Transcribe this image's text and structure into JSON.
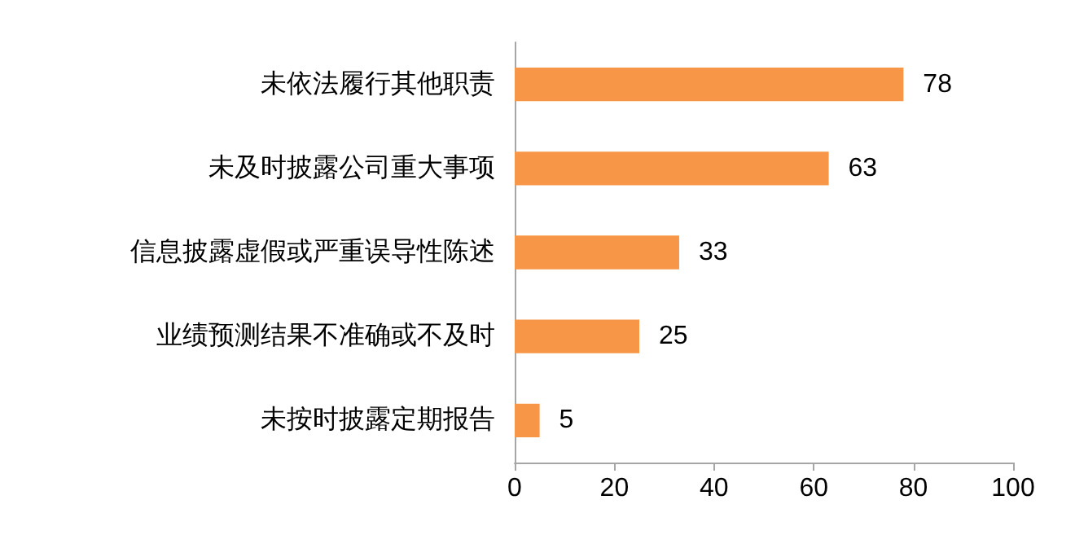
{
  "chart_data": {
    "type": "bar",
    "orientation": "horizontal",
    "categories": [
      "未依法履行其他职责",
      "未及时披露公司重大事项",
      "信息披露虚假或严重误导性陈述",
      "业绩预测结果不准确或不及时",
      "未按时披露定期报告"
    ],
    "values": [
      78,
      63,
      33,
      25,
      5
    ],
    "color": "#f79646",
    "xlim": [
      0,
      100
    ],
    "xticks": [
      0,
      20,
      40,
      60,
      80,
      100
    ],
    "data_labels": true,
    "grid": false
  }
}
